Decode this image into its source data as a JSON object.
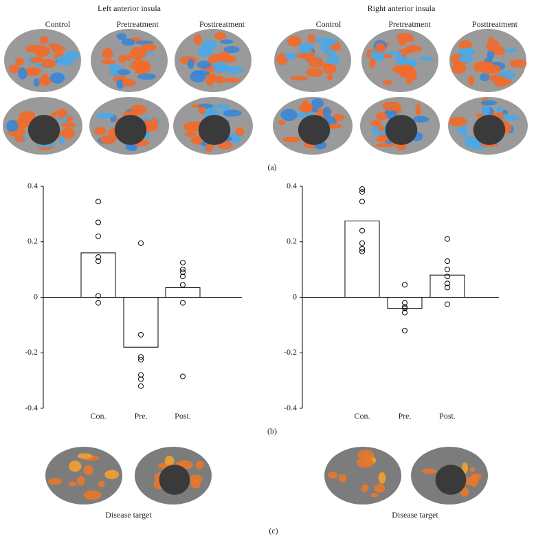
{
  "figure": {
    "panel_a": {
      "label": "(a)",
      "groups": [
        {
          "title": "Left anterior insula",
          "conditions": [
            "Control",
            "Pretreatment",
            "Posttreatment"
          ]
        },
        {
          "title": "Right anterior insula",
          "conditions": [
            "Control",
            "Pretreatment",
            "Posttreatment"
          ]
        }
      ]
    },
    "panel_b": {
      "label": "(b)"
    },
    "panel_c": {
      "label": "(c)",
      "captions": [
        "Disease target",
        "Disease target"
      ]
    }
  },
  "chart_data": [
    {
      "type": "bar",
      "categories": [
        "Con.",
        "Pre.",
        "Post."
      ],
      "values": [
        0.16,
        -0.18,
        0.035
      ],
      "points": [
        [
          0.345,
          0.27,
          0.22,
          0.145,
          0.13,
          0.005,
          -0.02
        ],
        [
          0.195,
          -0.135,
          -0.215,
          -0.225,
          -0.28,
          -0.295,
          -0.32
        ],
        [
          0.125,
          0.1,
          0.09,
          0.075,
          0.045,
          -0.02,
          -0.285
        ]
      ],
      "ylim": [
        -0.4,
        0.4
      ],
      "yticks": [
        0.4,
        0.2,
        0,
        -0.2,
        -0.4
      ],
      "color": "#ffffff"
    },
    {
      "type": "bar",
      "categories": [
        "Con.",
        "Pre.",
        "Post."
      ],
      "values": [
        0.275,
        -0.04,
        0.08
      ],
      "points": [
        [
          0.39,
          0.38,
          0.345,
          0.24,
          0.195,
          0.175,
          0.165
        ],
        [
          0.045,
          -0.02,
          -0.035,
          -0.04,
          -0.055,
          -0.12
        ],
        [
          0.21,
          0.13,
          0.1,
          0.075,
          0.05,
          0.035,
          -0.025
        ]
      ],
      "ylim": [
        -0.4,
        0.4
      ],
      "yticks": [
        0.4,
        0.2,
        0,
        -0.2,
        -0.4
      ],
      "color": "#ffffff"
    }
  ]
}
